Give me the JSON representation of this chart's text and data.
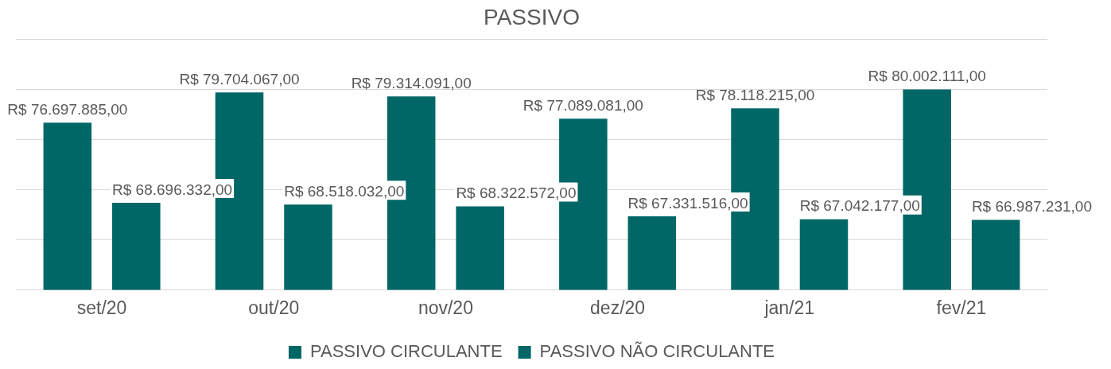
{
  "chart_data": {
    "type": "bar",
    "title": "PASSIVO",
    "categories": [
      "set/20",
      "out/20",
      "nov/20",
      "dez/20",
      "jan/21",
      "fev/21"
    ],
    "series": [
      {
        "name": "PASSIVO CIRCULANTE",
        "color": "#006666",
        "values": [
          76697885,
          79704067,
          79314091,
          77089081,
          78118215,
          80002111
        ],
        "value_labels": [
          "R$ 76.697.885,00",
          "R$ 79.704.067,00",
          "R$ 79.314.091,00",
          "R$ 77.089.081,00",
          "R$ 78.118.215,00",
          "R$ 80.002.111,00"
        ]
      },
      {
        "name": "PASSIVO NÃO CIRCULANTE",
        "color": "#006666",
        "values": [
          68696332,
          68518032,
          68322572,
          67331516,
          67042177,
          66987231
        ],
        "value_labels": [
          "R$ 68.696.332,00",
          "R$ 68.518.032,00",
          "R$ 68.322.572,00",
          "R$ 67.331.516,00",
          "R$ 67.042.177,00",
          "R$ 66.987.231,00"
        ]
      }
    ],
    "ylim": [
      60000000,
      85000000
    ],
    "yticks": [
      {
        "value": 60000000,
        "label": null
      },
      {
        "value": 65000000,
        "label": null
      },
      {
        "value": 70000000,
        "label": null
      },
      {
        "value": 75000000,
        "label": null
      },
      {
        "value": 80000000,
        "label": null
      },
      {
        "value": 85000000,
        "label": null
      }
    ],
    "tick_labels": "x",
    "grid": "y",
    "legend": "bottom"
  }
}
